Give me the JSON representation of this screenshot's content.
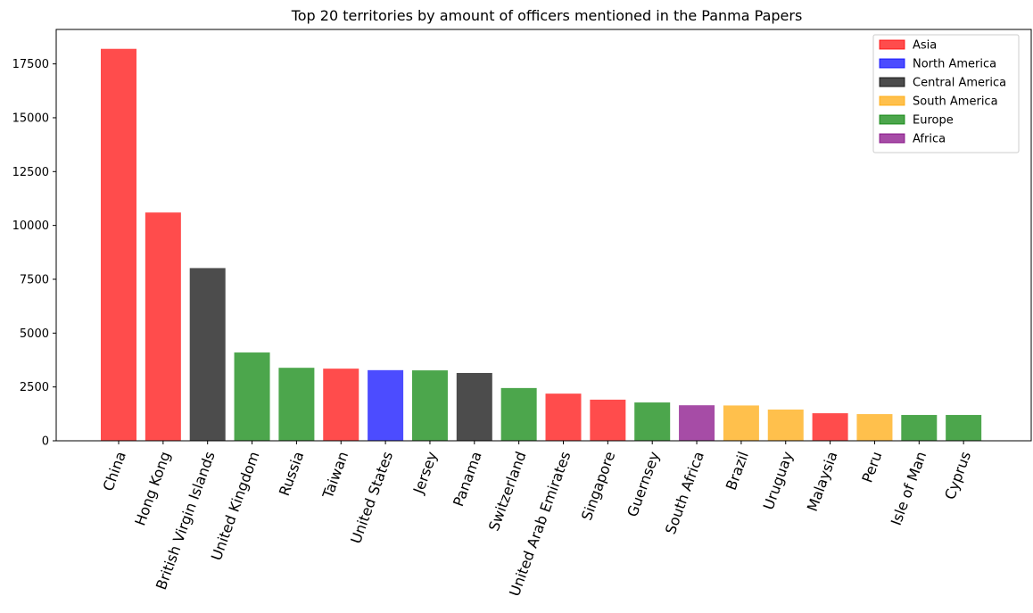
{
  "chart_data": {
    "type": "bar",
    "title": "Top 20 territories by amount of officers mentioned in the Panma Papers",
    "xlabel": "",
    "ylabel": "",
    "ylim": [
      0,
      19100
    ],
    "yticks": [
      0,
      2500,
      5000,
      7500,
      10000,
      12500,
      15000,
      17500
    ],
    "grid": false,
    "legend_position": "top-right",
    "categories": [
      "China",
      "Hong Kong",
      "British Virgin Islands",
      "United Kingdom",
      "Russia",
      "Taiwan",
      "United States",
      "Jersey",
      "Panama",
      "Switzerland",
      "United Arab Emirates",
      "Singapore",
      "Guernsey",
      "South Africa",
      "Brazil",
      "Uruguay",
      "Malaysia",
      "Peru",
      "Isle of Man",
      "Cyprus"
    ],
    "values": [
      18200,
      10600,
      8020,
      4100,
      3390,
      3350,
      3280,
      3270,
      3150,
      2450,
      2190,
      1910,
      1780,
      1650,
      1640,
      1450,
      1280,
      1240,
      1200,
      1200
    ],
    "regions": [
      "Asia",
      "Asia",
      "Central America",
      "Europe",
      "Europe",
      "Asia",
      "North America",
      "Europe",
      "Central America",
      "Europe",
      "Asia",
      "Asia",
      "Europe",
      "Africa",
      "South America",
      "South America",
      "Asia",
      "South America",
      "Europe",
      "Europe"
    ],
    "legend": [
      {
        "name": "Asia",
        "color": "#ff0000"
      },
      {
        "name": "North America",
        "color": "#0000ff"
      },
      {
        "name": "Central America",
        "color": "#000000"
      },
      {
        "name": "South America",
        "color": "#ffa500"
      },
      {
        "name": "Europe",
        "color": "#008000"
      },
      {
        "name": "Africa",
        "color": "#800080"
      }
    ],
    "bar_opacity": 0.7
  }
}
